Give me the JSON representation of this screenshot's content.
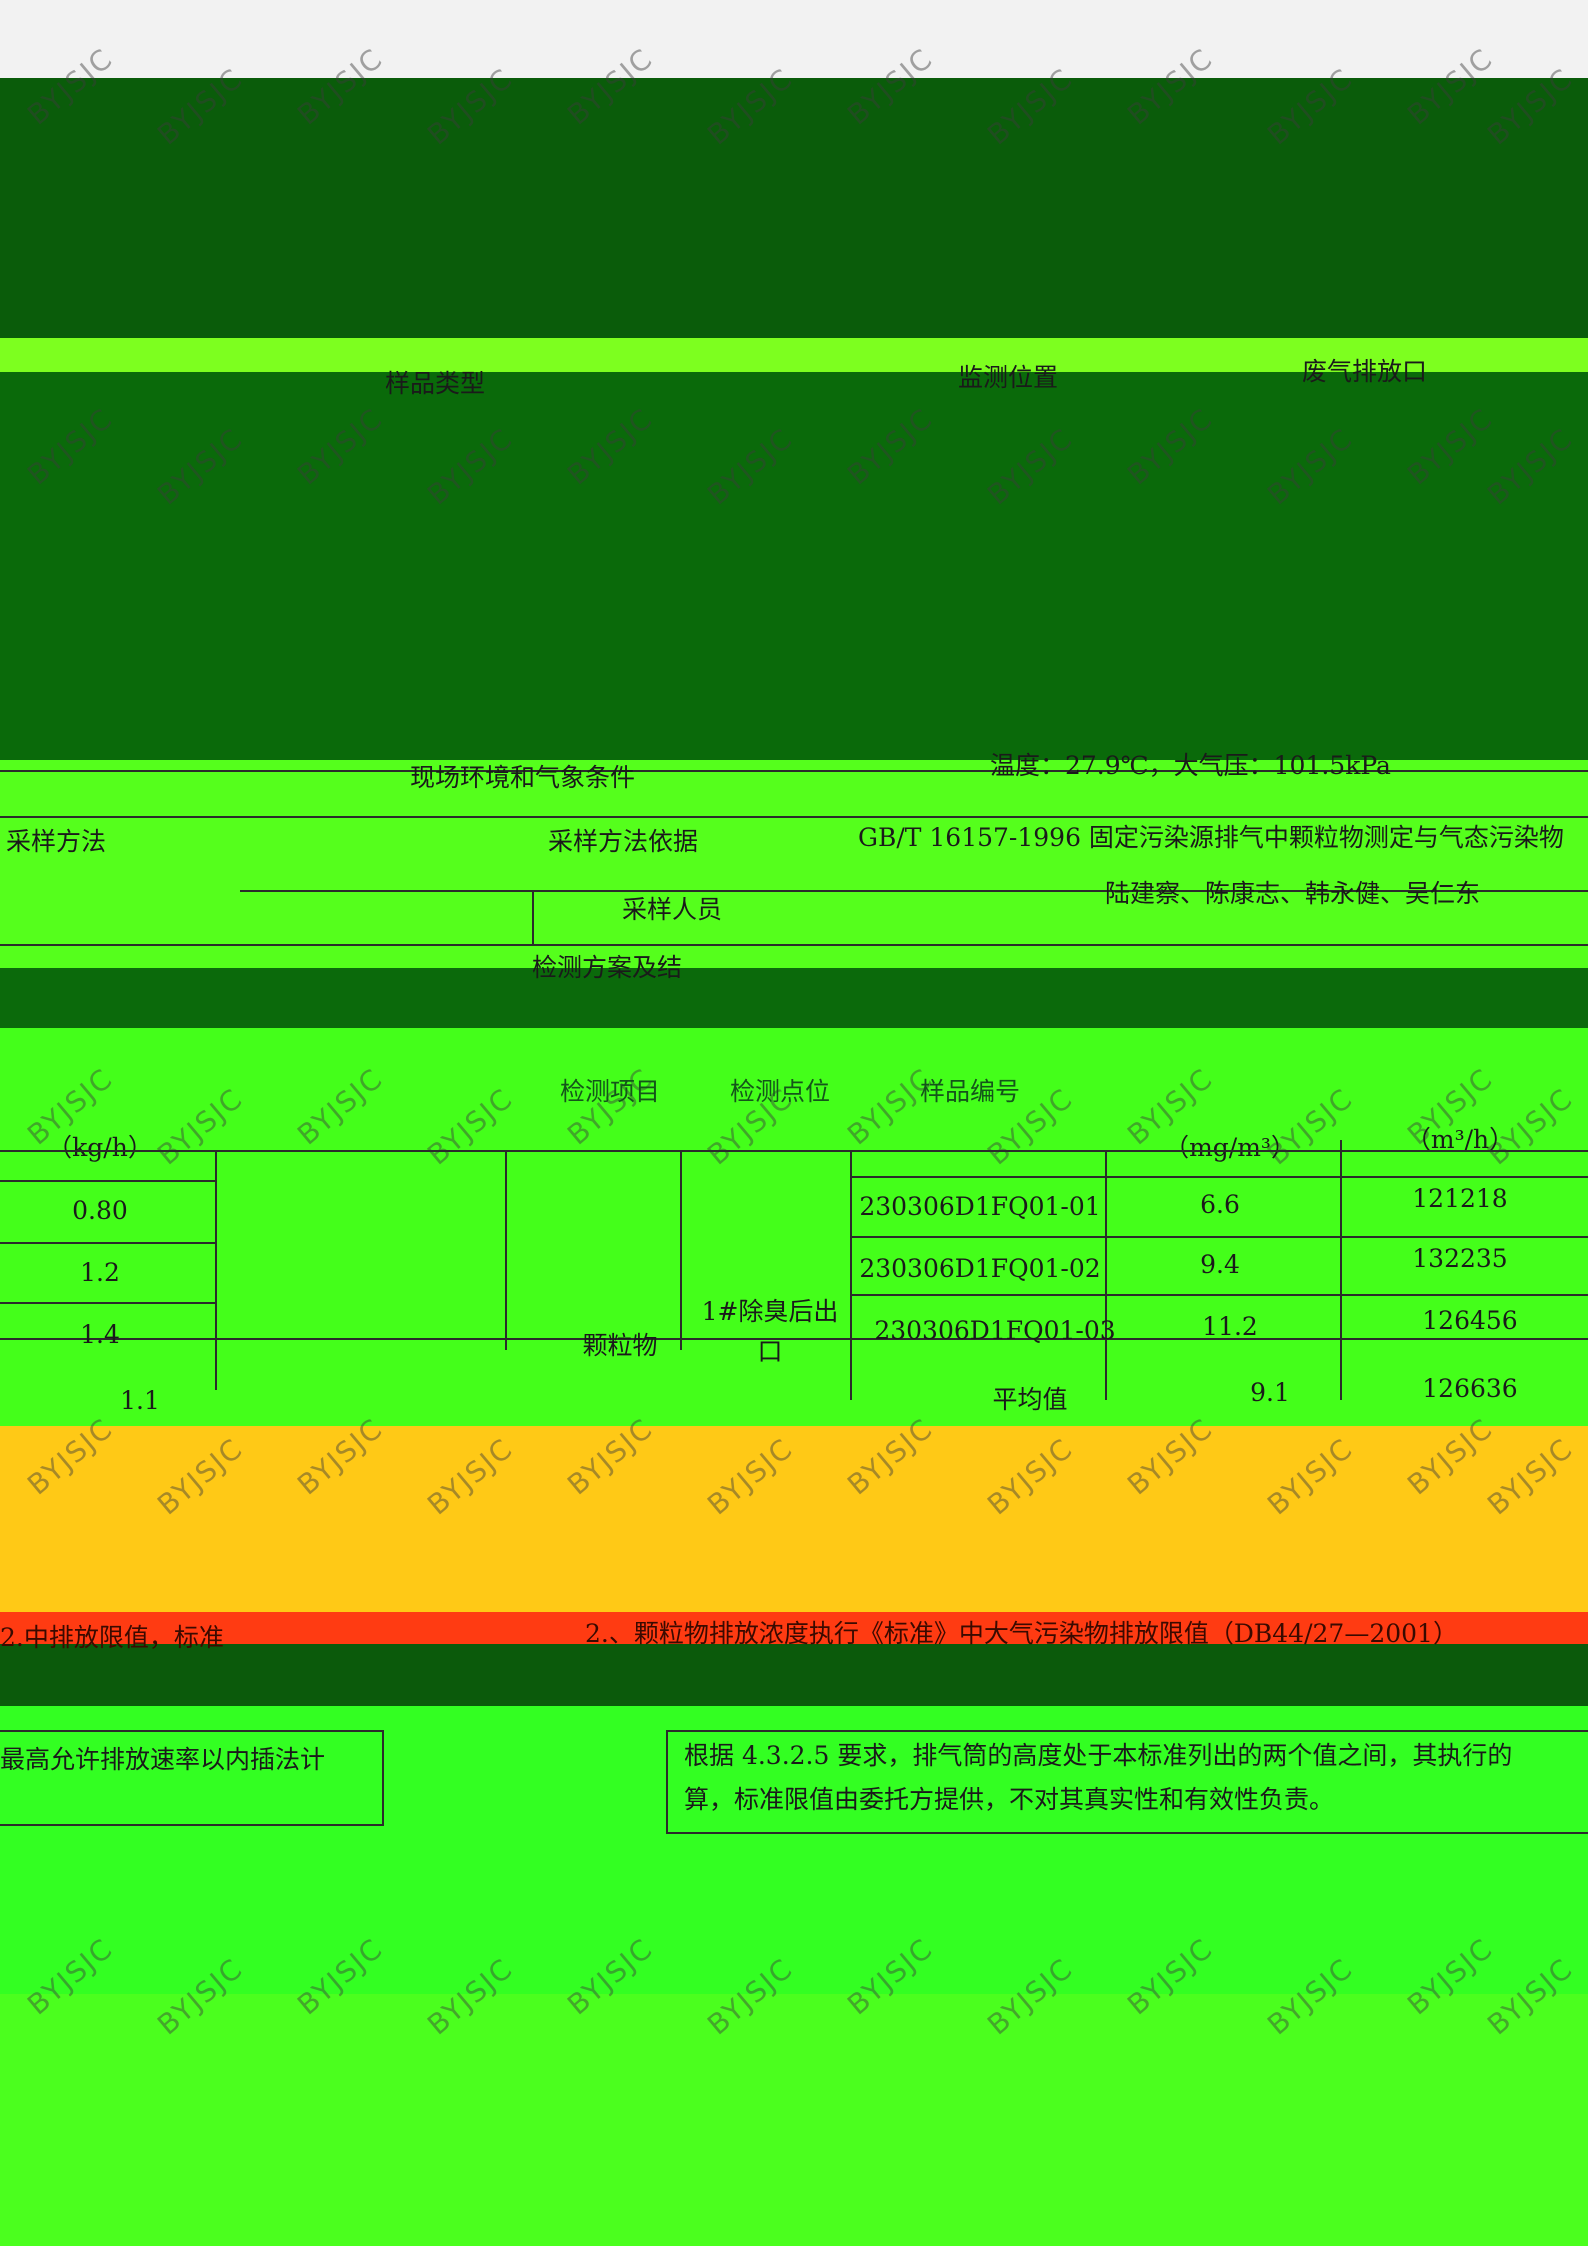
{
  "watermark": "BYJSJC",
  "header": {
    "sample_type_label": "样品类型",
    "sampling_location_label": "监测位置",
    "location_value": "废气排放口"
  },
  "conditions": {
    "label": "现场环境和气象条件",
    "value": "温度：27.9℃，大气压：101.5kPa"
  },
  "sampling": {
    "method_label": "采样方法",
    "basis_label": "采样方法依据",
    "basis_value": "GB/T 16157-1996 固定污染源排气中颗粒物测定与气态污染物",
    "personnel_label": "采样人员",
    "personnel_value": "陆建察、陈康志、韩永健、吴仁东",
    "analysis_label": "检测方案及结"
  },
  "table": {
    "headers": {
      "item": "检测项目",
      "point": "检测点位",
      "sample_no": "样品编号",
      "conc_unit": "（mg/m³）",
      "flow_unit": "（m³/h）",
      "rate_unit": "（kg/h）"
    },
    "item": "颗粒物",
    "point": "1#除臭后出口",
    "rows": [
      {
        "rate": "0.80",
        "sample": "230306D1FQ01-01",
        "conc": "6.6",
        "flow": "121218"
      },
      {
        "rate": "1.2",
        "sample": "230306D1FQ01-02",
        "conc": "9.4",
        "flow": "132235"
      },
      {
        "rate": "1.4",
        "sample": "230306D1FQ01-03",
        "conc": "11.2",
        "flow": "126456"
      },
      {
        "rate": "1.1",
        "sample": "平均值",
        "conc": "9.1",
        "flow": "126636"
      }
    ]
  },
  "notes": {
    "left_red": "2.中排放限值，标准",
    "right_red": "2.、颗粒物排放浓度执行《标准》中大气污染物排放限值（DB44/27—2001）",
    "left_text": "最高允许排放速率以内插法计",
    "right_line1": "根据 4.3.2.5 要求，排气筒的高度处于本标准列出的两个值之间，其执行的",
    "right_line2": "算，标准限值由委托方提供，不对其真实性和有效性负责。"
  }
}
